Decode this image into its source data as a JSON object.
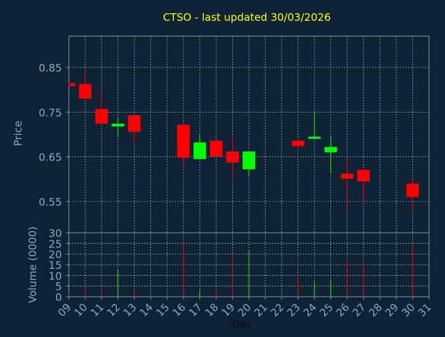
{
  "chart_data": {
    "type": "candlestick",
    "title": "CTSO - last updated 30/03/2026",
    "colors": {
      "background": "#0f2236",
      "plot_border": "#8899aa",
      "grid": "#9aa7b4",
      "axis_text": "#8aa8c8",
      "title": "#ffff00",
      "up": "#00ff00",
      "down": "#ff0000"
    },
    "price_panel": {
      "ylabel": "Price",
      "ylim": [
        0.48,
        0.92
      ],
      "yticks": [
        0.55,
        0.65,
        0.75,
        0.85
      ],
      "ytick_labels": [
        "0.55",
        "0.65",
        "0.75",
        "0.85"
      ],
      "grid": true
    },
    "volume_panel": {
      "ylabel": "Volume (0000)",
      "ylim": [
        0,
        30
      ],
      "yticks": [
        0,
        5,
        10,
        15,
        20,
        25,
        30
      ],
      "ytick_labels": [
        "0",
        "5",
        "10",
        "15",
        "20",
        "25",
        "30"
      ],
      "grid": true
    },
    "xaxis": {
      "xlabel": "Day",
      "xlim": [
        9,
        31
      ],
      "xticks": [
        9,
        10,
        11,
        12,
        13,
        14,
        15,
        16,
        17,
        18,
        19,
        20,
        21,
        22,
        23,
        24,
        25,
        26,
        27,
        28,
        29,
        30,
        31
      ],
      "xtick_labels": [
        "09",
        "10",
        "11",
        "12",
        "13",
        "14",
        "15",
        "16",
        "17",
        "18",
        "19",
        "20",
        "21",
        "22",
        "23",
        "24",
        "25",
        "26",
        "27",
        "28",
        "29",
        "30",
        "31"
      ],
      "grid": true
    },
    "candles": [
      {
        "day": 9,
        "open": 0.815,
        "high": 0.815,
        "low": 0.808,
        "close": 0.808,
        "volume": 1
      },
      {
        "day": 10,
        "open": 0.813,
        "high": 0.845,
        "low": 0.779,
        "close": 0.78,
        "volume": 4
      },
      {
        "day": 11,
        "open": 0.757,
        "high": 0.8,
        "low": 0.723,
        "close": 0.724,
        "volume": 4
      },
      {
        "day": 12,
        "open": 0.718,
        "high": 0.74,
        "low": 0.695,
        "close": 0.724,
        "volume": 13
      },
      {
        "day": 13,
        "open": 0.743,
        "high": 0.743,
        "low": 0.679,
        "close": 0.706,
        "volume": 3
      },
      {
        "day": 16,
        "open": 0.722,
        "high": 0.722,
        "low": 0.626,
        "close": 0.648,
        "volume": 25
      },
      {
        "day": 17,
        "open": 0.645,
        "high": 0.7,
        "low": 0.645,
        "close": 0.682,
        "volume": 3
      },
      {
        "day": 18,
        "open": 0.686,
        "high": 0.686,
        "low": 0.65,
        "close": 0.651,
        "volume": 3
      },
      {
        "day": 19,
        "open": 0.662,
        "high": 0.7,
        "low": 0.6,
        "close": 0.637,
        "volume": 20
      },
      {
        "day": 20,
        "open": 0.622,
        "high": 0.662,
        "low": 0.608,
        "close": 0.662,
        "volume": 22
      },
      {
        "day": 23,
        "open": 0.686,
        "high": 0.69,
        "low": 0.664,
        "close": 0.674,
        "volume": 9
      },
      {
        "day": 24,
        "open": 0.692,
        "high": 0.75,
        "low": 0.692,
        "close": 0.695,
        "volume": 7
      },
      {
        "day": 25,
        "open": 0.66,
        "high": 0.695,
        "low": 0.612,
        "close": 0.672,
        "volume": 8
      },
      {
        "day": 26,
        "open": 0.612,
        "high": 0.645,
        "low": 0.53,
        "close": 0.601,
        "volume": 17
      },
      {
        "day": 27,
        "open": 0.621,
        "high": 0.621,
        "low": 0.55,
        "close": 0.595,
        "volume": 16
      },
      {
        "day": 30,
        "open": 0.59,
        "high": 0.6,
        "low": 0.53,
        "close": 0.56,
        "volume": 25
      }
    ]
  }
}
